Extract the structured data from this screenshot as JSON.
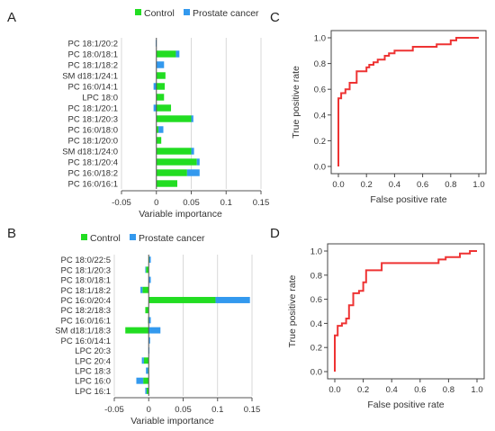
{
  "panels": {
    "A": "A",
    "B": "B",
    "C": "C",
    "D": "D"
  },
  "colors": {
    "control": "#22dd22",
    "cancer": "#3399ee",
    "roc": "#ee3333",
    "axis": "#555555",
    "grid": "#d0d0d0"
  },
  "chart_data": [
    {
      "panel": "A",
      "type": "bar",
      "orientation": "horizontal",
      "stacked": true,
      "categories": [
        "PC 18:1/20:2",
        "PC 18:0/18:1",
        "PC 18:1/18:2",
        "SM d18:1/24:1",
        "PC 16:0/14:1",
        "LPC 18:0",
        "PC 18:1/20:1",
        "PC 18:1/20:3",
        "PC 16:0/18:0",
        "PC 18:1/20:0",
        "SM d18:1/24:0",
        "PC 18:1/20:4",
        "PC 16:0/18:2",
        "PC 16:0/16:1"
      ],
      "series": [
        {
          "name": "Control",
          "values": [
            0.0,
            0.028,
            0.0,
            0.013,
            0.012,
            0.011,
            0.021,
            0.05,
            0.003,
            0.007,
            0.05,
            0.058,
            0.044,
            0.03
          ]
        },
        {
          "name": "Prostate cancer",
          "values": [
            -0.001,
            0.005,
            0.011,
            0.0,
            -0.004,
            0.0,
            -0.004,
            0.003,
            0.007,
            0.0,
            0.004,
            0.004,
            0.018,
            0.0
          ]
        }
      ],
      "xlabel": "Variable importance",
      "xlim": [
        -0.05,
        0.15
      ],
      "xticks": [
        "-0.05",
        "0",
        "0.05",
        "0.1",
        "0.15"
      ],
      "legend": [
        "Control",
        "Prostate cancer"
      ],
      "legend_position": "top",
      "grid": true
    },
    {
      "panel": "B",
      "type": "bar",
      "orientation": "horizontal",
      "stacked": true,
      "categories": [
        "PC 18:0/22:5",
        "PC 18:1/20:3",
        "PC 18:0/18:1",
        "PC 18:1/18:2",
        "PC 16:0/20:4",
        "PC 18:2/18:3",
        "PC 16:0/16:1",
        "SM d18:1/18:3",
        "PC 16:0/14:1",
        "LPC 20:3",
        "LPC 20:4",
        "LPC 18:3",
        "LPC 16:0",
        "LPC 16:1"
      ],
      "series": [
        {
          "name": "Control",
          "values": [
            0.001,
            -0.004,
            0.0,
            -0.009,
            0.097,
            -0.005,
            -0.001,
            -0.034,
            0.0,
            0.0,
            -0.007,
            -0.001,
            -0.008,
            -0.003
          ]
        },
        {
          "name": "Prostate cancer",
          "values": [
            0.002,
            -0.001,
            0.003,
            -0.003,
            0.05,
            0.0,
            0.003,
            0.017,
            0.002,
            0.001,
            -0.003,
            -0.003,
            -0.01,
            -0.002
          ]
        }
      ],
      "xlabel": "Variable importance",
      "xlim": [
        -0.05,
        0.15
      ],
      "xticks": [
        "-0.05",
        "0",
        "0.05",
        "0.1",
        "0.15"
      ],
      "legend": [
        "Control",
        "Prostate cancer"
      ],
      "legend_position": "top",
      "grid": true
    },
    {
      "panel": "C",
      "type": "line",
      "step": true,
      "x": [
        0.0,
        0.0,
        0.02,
        0.02,
        0.05,
        0.05,
        0.08,
        0.08,
        0.13,
        0.13,
        0.2,
        0.2,
        0.22,
        0.22,
        0.25,
        0.25,
        0.28,
        0.28,
        0.33,
        0.33,
        0.36,
        0.36,
        0.4,
        0.4,
        0.53,
        0.53,
        0.7,
        0.7,
        0.8,
        0.8,
        0.84,
        0.84,
        1.0
      ],
      "y": [
        0.0,
        0.53,
        0.53,
        0.57,
        0.57,
        0.6,
        0.6,
        0.65,
        0.65,
        0.74,
        0.74,
        0.77,
        0.77,
        0.79,
        0.79,
        0.81,
        0.81,
        0.83,
        0.83,
        0.86,
        0.86,
        0.88,
        0.88,
        0.9,
        0.9,
        0.93,
        0.93,
        0.95,
        0.95,
        0.98,
        0.98,
        1.0,
        1.0
      ],
      "xlabel": "False positive rate",
      "ylabel": "True positive rate",
      "xlim": [
        0,
        1
      ],
      "ylim": [
        0,
        1
      ],
      "xticks": [
        "0.0",
        "0.2",
        "0.4",
        "0.6",
        "0.8",
        "1.0"
      ],
      "yticks": [
        "0.0",
        "0.2",
        "0.4",
        "0.6",
        "0.8",
        "1.0"
      ],
      "grid": false
    },
    {
      "panel": "D",
      "type": "line",
      "step": true,
      "x": [
        0.0,
        0.0,
        0.02,
        0.02,
        0.05,
        0.05,
        0.08,
        0.08,
        0.1,
        0.1,
        0.13,
        0.13,
        0.17,
        0.17,
        0.2,
        0.2,
        0.22,
        0.22,
        0.33,
        0.33,
        0.73,
        0.73,
        0.78,
        0.78,
        0.88,
        0.88,
        0.95,
        0.95,
        1.0
      ],
      "y": [
        0.0,
        0.3,
        0.3,
        0.38,
        0.38,
        0.4,
        0.4,
        0.44,
        0.44,
        0.55,
        0.55,
        0.65,
        0.65,
        0.67,
        0.67,
        0.74,
        0.74,
        0.84,
        0.84,
        0.9,
        0.9,
        0.93,
        0.93,
        0.95,
        0.95,
        0.98,
        0.98,
        1.0,
        1.0
      ],
      "xlabel": "False positive rate",
      "ylabel": "True positive rate",
      "xlim": [
        0,
        1
      ],
      "ylim": [
        0,
        1
      ],
      "xticks": [
        "0.0",
        "0.2",
        "0.4",
        "0.6",
        "0.8",
        "1.0"
      ],
      "yticks": [
        "0.0",
        "0.2",
        "0.4",
        "0.6",
        "0.8",
        "1.0"
      ],
      "grid": false
    }
  ]
}
